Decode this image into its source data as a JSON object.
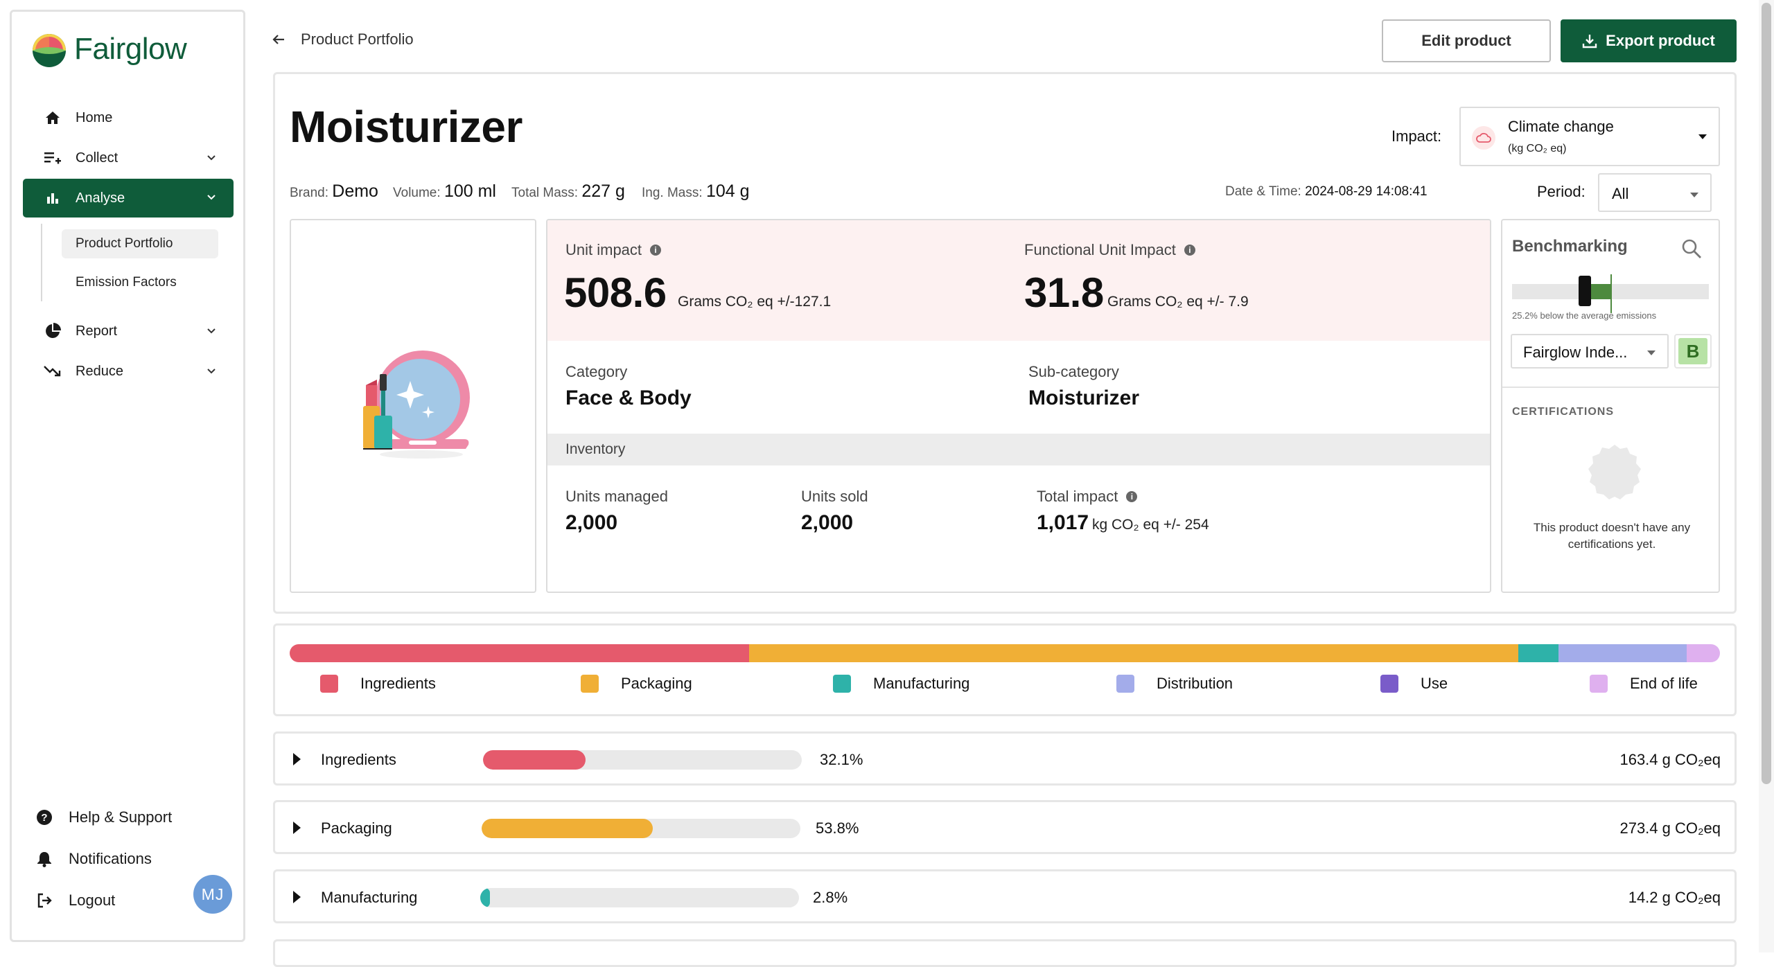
{
  "brand": {
    "name": "Fairglow",
    "accent": "#0f5c3a"
  },
  "sidebar": {
    "nav": [
      {
        "label": "Home",
        "icon": "home-icon"
      },
      {
        "label": "Collect",
        "icon": "playlist-add-icon"
      },
      {
        "label": "Analyse",
        "icon": "bar-chart-icon"
      },
      {
        "label": "Report",
        "icon": "pie-chart-icon"
      },
      {
        "label": "Reduce",
        "icon": "trending-down-icon"
      }
    ],
    "sub": [
      "Product Portfolio",
      "Emission Factors"
    ],
    "footer": [
      {
        "label": "Help & Support",
        "icon": "help-icon"
      },
      {
        "label": "Notifications",
        "icon": "bell-icon"
      },
      {
        "label": "Logout",
        "icon": "logout-icon"
      }
    ],
    "avatar": "MJ"
  },
  "header": {
    "breadcrumb": "Product Portfolio",
    "edit_label": "Edit product",
    "export_label": "Export product"
  },
  "product": {
    "title": "Moisturizer",
    "brand_label": "Brand:",
    "brand": "Demo",
    "volume_label": "Volume:",
    "volume": "100 ml",
    "total_mass_label": "Total Mass:",
    "total_mass": "227 g",
    "ing_mass_label": "Ing. Mass:",
    "ing_mass": "104 g",
    "datetime_label": "Date & Time:",
    "datetime": "2024-08-29 14:08:41"
  },
  "filters": {
    "impact_label": "Impact:",
    "impact_value": "Climate change",
    "impact_unit": "(kg CO₂ eq)",
    "period_label": "Period:",
    "period_value": "All"
  },
  "stats": {
    "unit_impact_label": "Unit impact",
    "unit_impact_value": "508.6",
    "unit_impact_unit": "Grams CO₂ eq +/-127.1",
    "functional_label": "Functional Unit Impact",
    "functional_value": "31.8",
    "functional_unit": "Grams CO₂ eq +/- 7.9",
    "category_label": "Category",
    "category_value": "Face & Body",
    "subcategory_label": "Sub-category",
    "subcategory_value": "Moisturizer",
    "inventory_label": "Inventory",
    "units_managed_label": "Units managed",
    "units_managed_value": "2,000",
    "units_sold_label": "Units sold",
    "units_sold_value": "2,000",
    "total_impact_label": "Total impact",
    "total_impact_value": "1,017",
    "total_impact_unit": "kg CO₂ eq +/- 254"
  },
  "benchmark": {
    "title": "Benchmarking",
    "caption": "25.2% below the average emissions",
    "below_avg_fraction": 0.252,
    "select_value": "Fairglow Inde...",
    "grade": "B",
    "cert_title": "CERTIFICATIONS",
    "cert_text": "This product doesn't have any certifications yet."
  },
  "breakdown": {
    "segments": [
      {
        "name": "Ingredients",
        "share": 0.321,
        "color": "#e55a6c"
      },
      {
        "name": "Packaging",
        "share": 0.538,
        "color": "#f0af36"
      },
      {
        "name": "Manufacturing",
        "share": 0.028,
        "color": "#2eb2a9"
      },
      {
        "name": "Distribution",
        "share": 0.09,
        "color": "#a3acea"
      },
      {
        "name": "Use",
        "share": 0.0,
        "color": "#7a5cc9"
      },
      {
        "name": "End of life",
        "share": 0.023,
        "color": "#dfb0ef"
      }
    ]
  },
  "rows": [
    {
      "name": "Ingredients",
      "pct": "32.1%",
      "fraction": 0.321,
      "value": "163.4 g CO₂eq",
      "color": "#e55a6c"
    },
    {
      "name": "Packaging",
      "pct": "53.8%",
      "fraction": 0.538,
      "value": "273.4 g CO₂eq",
      "color": "#f0af36"
    },
    {
      "name": "Manufacturing",
      "pct": "2.8%",
      "fraction": 0.028,
      "value": "14.2 g CO₂eq",
      "color": "#2eb2a9"
    }
  ]
}
